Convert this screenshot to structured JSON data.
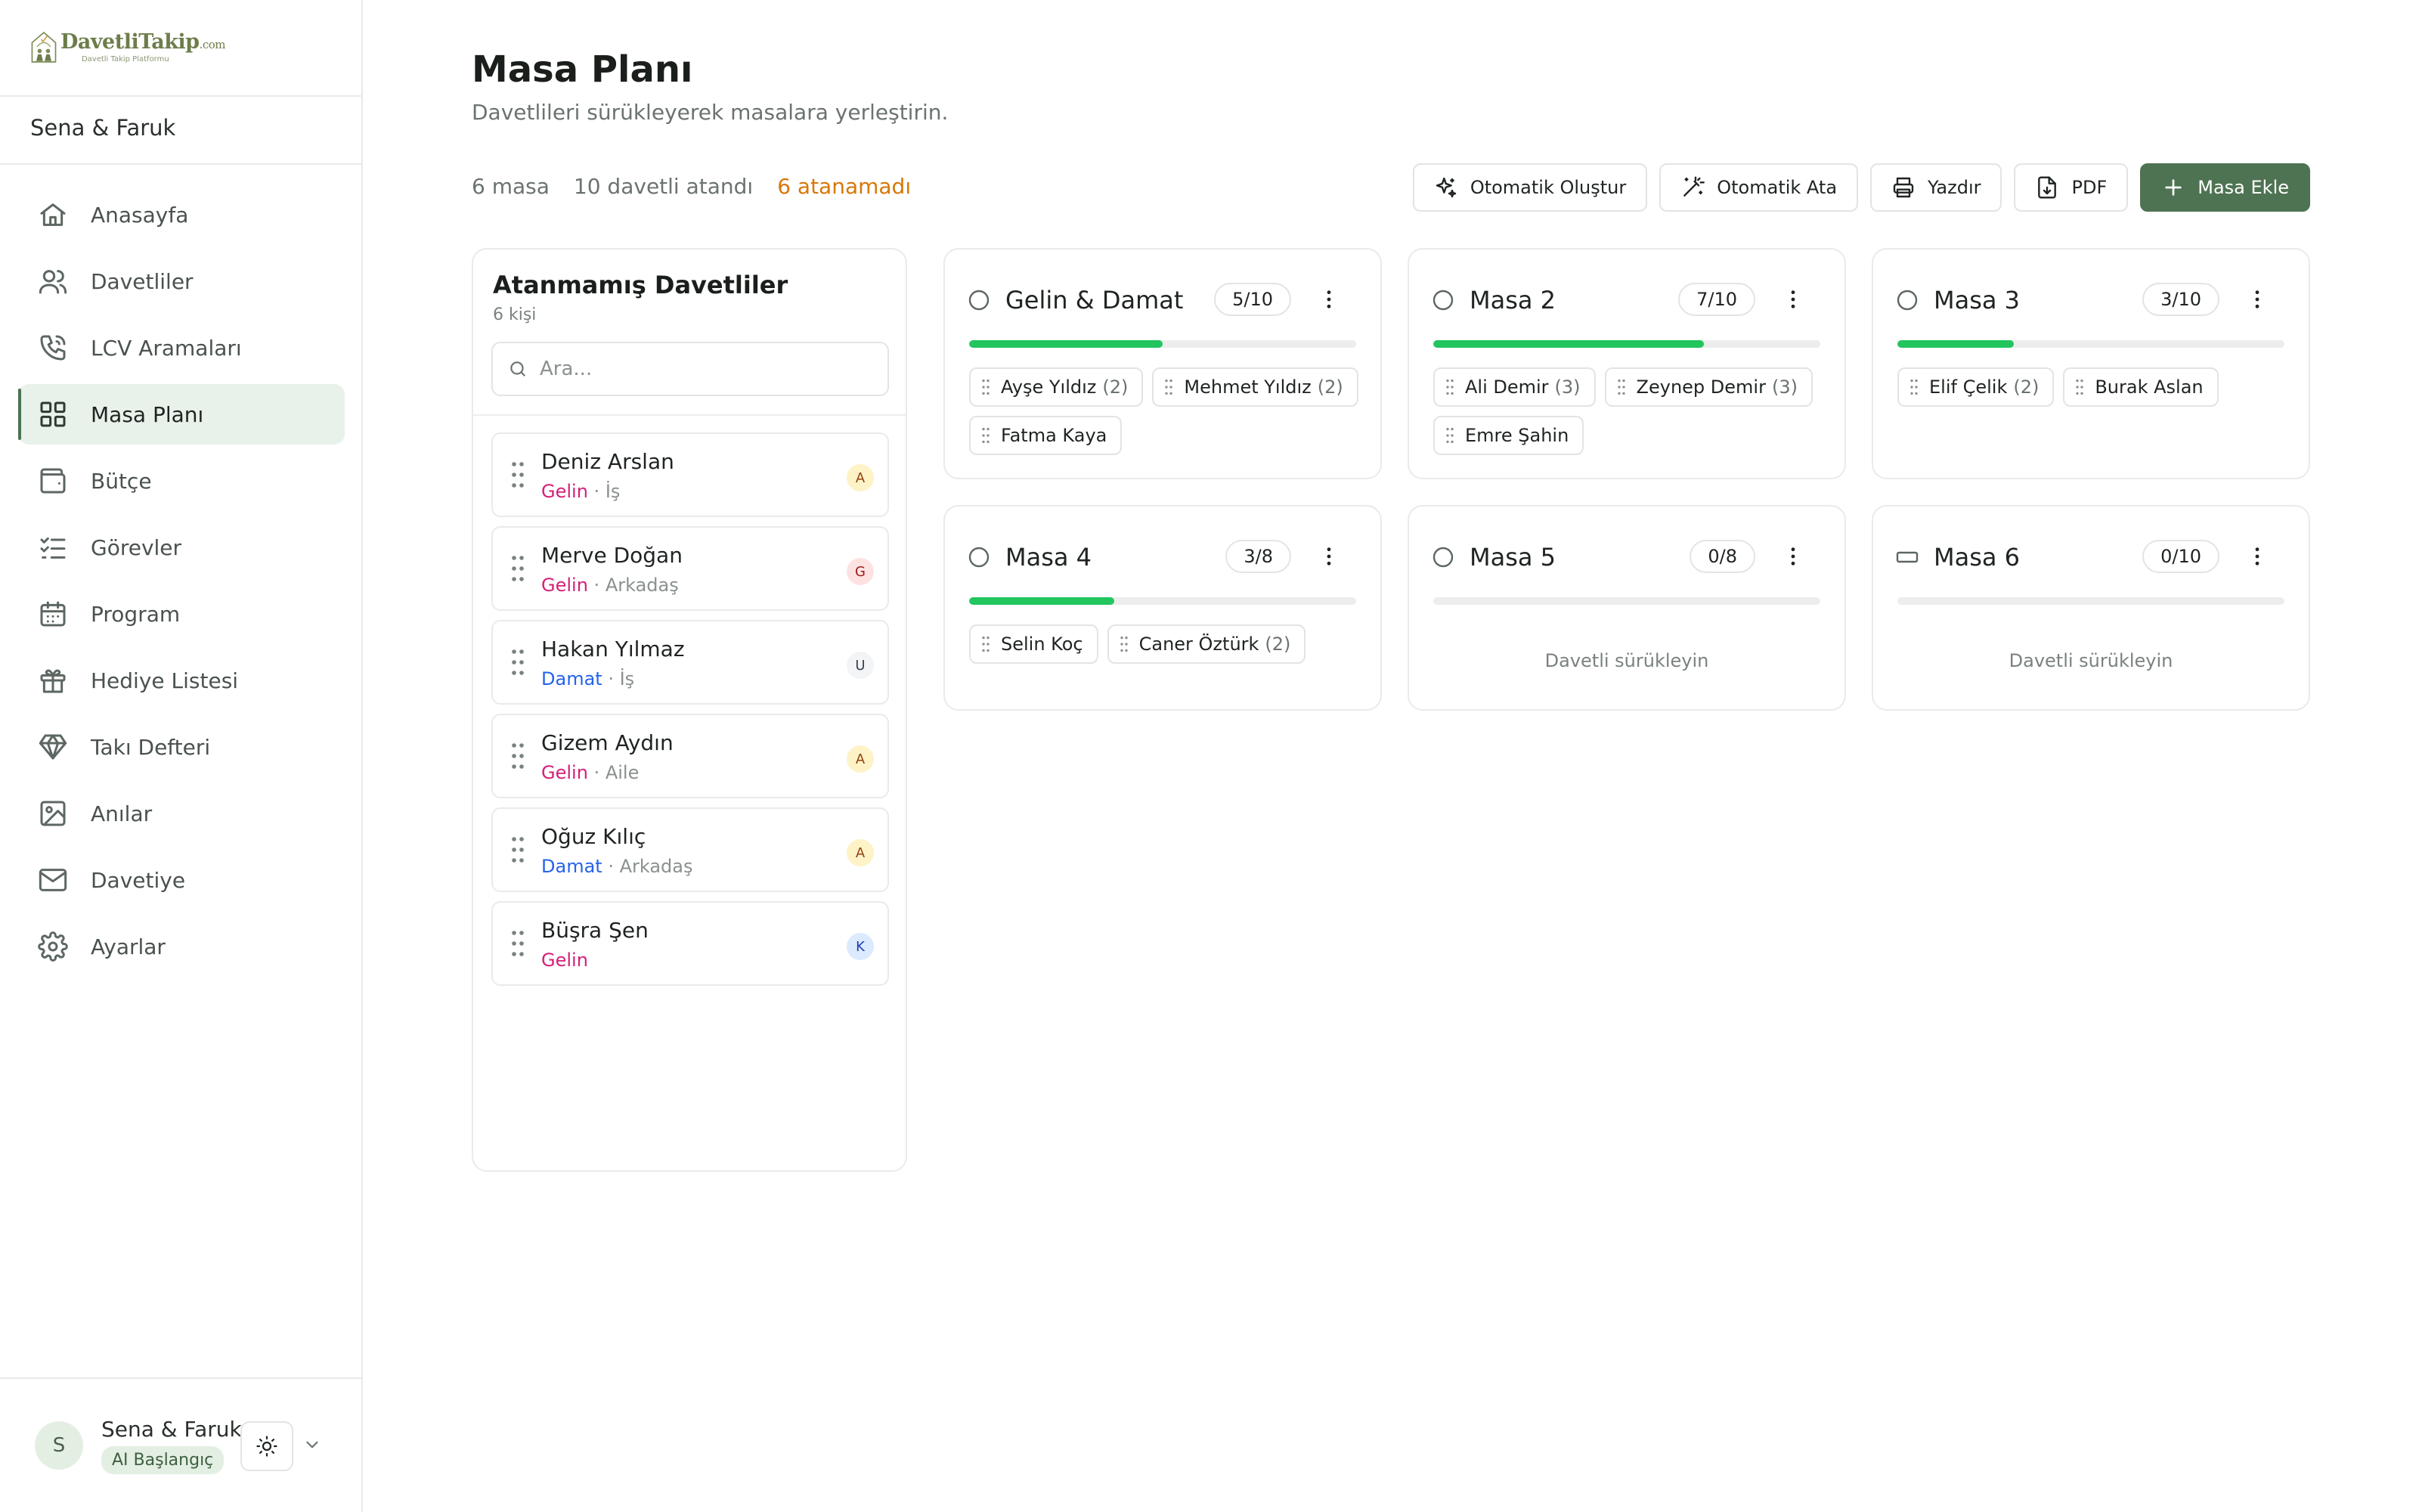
{
  "app": {
    "logo_name": "DavetliTakip",
    "logo_suffix": ".com",
    "logo_tagline": "Davetli Takip Platformu"
  },
  "sidebar": {
    "project": "Sena & Faruk",
    "items": [
      {
        "label": "Anasayfa",
        "icon": "home-icon"
      },
      {
        "label": "Davetliler",
        "icon": "users-icon"
      },
      {
        "label": "LCV Aramaları",
        "icon": "phone-call-icon"
      },
      {
        "label": "Masa Planı",
        "icon": "layout-grid-icon",
        "active": true
      },
      {
        "label": "Bütçe",
        "icon": "wallet-icon"
      },
      {
        "label": "Görevler",
        "icon": "list-checks-icon"
      },
      {
        "label": "Program",
        "icon": "calendar-icon"
      },
      {
        "label": "Hediye Listesi",
        "icon": "gift-icon"
      },
      {
        "label": "Takı Defteri",
        "icon": "gem-icon"
      },
      {
        "label": "Anılar",
        "icon": "image-icon"
      },
      {
        "label": "Davetiye",
        "icon": "mail-icon"
      },
      {
        "label": "Ayarlar",
        "icon": "gear-icon"
      }
    ],
    "user": {
      "initial": "S",
      "name": "Sena & Faruk",
      "plan": "AI Başlangıç"
    }
  },
  "header": {
    "title": "Masa Planı",
    "subtitle": "Davetlileri sürükleyerek masalara yerleştirin."
  },
  "stats": {
    "tables": "6 masa",
    "assigned": "10 davetli atandı",
    "unassigned": "6 atanamadı"
  },
  "toolbar": {
    "auto_create": "Otomatik Oluştur",
    "auto_assign": "Otomatik Ata",
    "print": "Yazdır",
    "pdf": "PDF",
    "add_table": "Masa Ekle"
  },
  "unassigned": {
    "title": "Atanmamış Davetliler",
    "count": "6 kişi",
    "search_placeholder": "Ara...",
    "guests": [
      {
        "name": "Deniz Arslan",
        "side": "Gelin",
        "side_type": "bride",
        "group": "İş",
        "status": "A",
        "status_color": "#fef3c7",
        "status_text": "#92400e"
      },
      {
        "name": "Merve Doğan",
        "side": "Gelin",
        "side_type": "bride",
        "group": "Arkadaş",
        "status": "G",
        "status_color": "#fee2e2",
        "status_text": "#991b1b"
      },
      {
        "name": "Hakan Yılmaz",
        "side": "Damat",
        "side_type": "groom",
        "group": "İş",
        "status": "U",
        "status_color": "#f3f4f6",
        "status_text": "#374151"
      },
      {
        "name": "Gizem Aydın",
        "side": "Gelin",
        "side_type": "bride",
        "group": "Aile",
        "status": "A",
        "status_color": "#fef3c7",
        "status_text": "#92400e"
      },
      {
        "name": "Oğuz Kılıç",
        "side": "Damat",
        "side_type": "groom",
        "group": "Arkadaş",
        "status": "A",
        "status_color": "#fef3c7",
        "status_text": "#92400e"
      },
      {
        "name": "Büşra Şen",
        "side": "Gelin",
        "side_type": "bride",
        "group": "",
        "status": "K",
        "status_color": "#dbeafe",
        "status_text": "#1e40af"
      }
    ]
  },
  "tables": [
    {
      "name": "Gelin & Damat",
      "shape": "round",
      "capacity": "5/10",
      "fill": 0.5,
      "guests": [
        {
          "name": "Ayşe Yıldız",
          "count": "(2)"
        },
        {
          "name": "Mehmet Yıldız",
          "count": "(2)"
        },
        {
          "name": "Fatma Kaya",
          "count": ""
        }
      ]
    },
    {
      "name": "Masa 2",
      "shape": "round",
      "capacity": "7/10",
      "fill": 0.7,
      "guests": [
        {
          "name": "Ali Demir",
          "count": "(3)"
        },
        {
          "name": "Zeynep Demir",
          "count": "(3)"
        },
        {
          "name": "Emre Şahin",
          "count": ""
        }
      ]
    },
    {
      "name": "Masa 3",
      "shape": "round",
      "capacity": "3/10",
      "fill": 0.3,
      "guests": [
        {
          "name": "Elif Çelik",
          "count": "(2)"
        },
        {
          "name": "Burak Aslan",
          "count": ""
        }
      ]
    },
    {
      "name": "Masa 4",
      "shape": "round",
      "capacity": "3/8",
      "fill": 0.375,
      "guests": [
        {
          "name": "Selin Koç",
          "count": ""
        },
        {
          "name": "Caner Öztürk",
          "count": "(2)"
        }
      ]
    },
    {
      "name": "Masa 5",
      "shape": "round",
      "capacity": "0/8",
      "fill": 0,
      "guests": [],
      "empty_text": "Davetli sürükleyin"
    },
    {
      "name": "Masa 6",
      "shape": "rectangle",
      "capacity": "0/10",
      "fill": 0,
      "guests": [],
      "empty_text": "Davetli sürükleyin"
    }
  ]
}
